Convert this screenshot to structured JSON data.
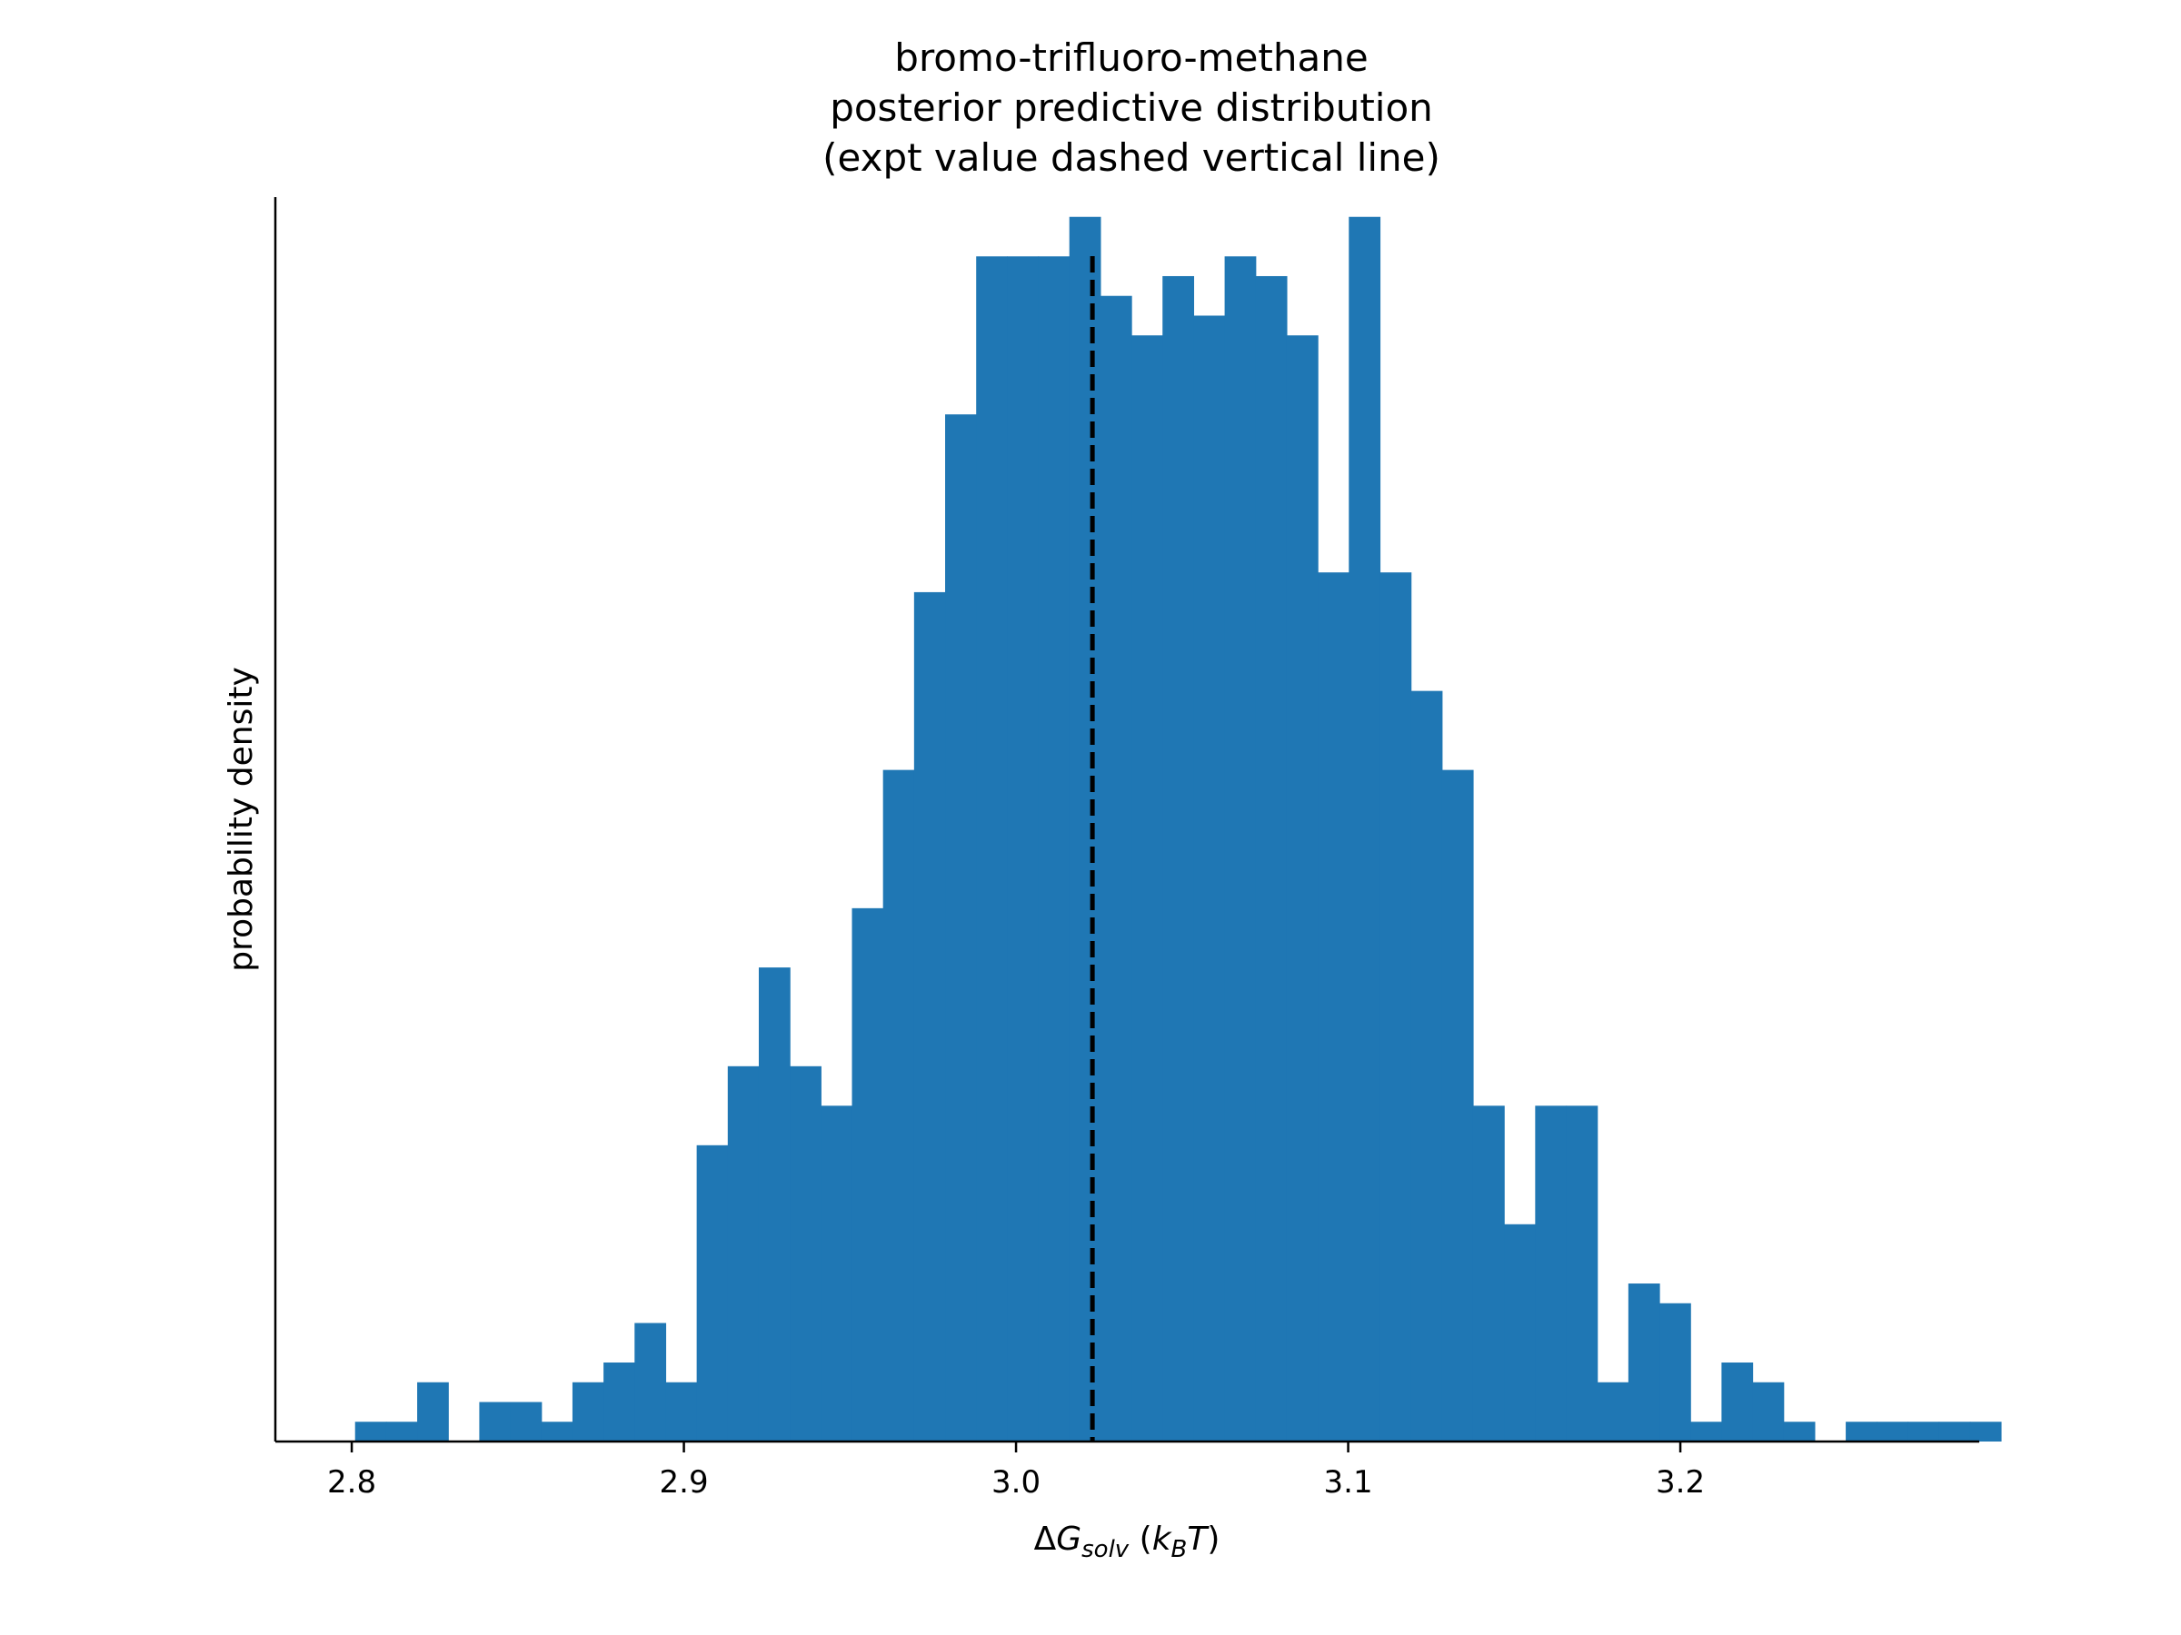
{
  "chart_data": {
    "type": "bar",
    "title_lines": [
      "bromo-trifluoro-methane",
      "posterior predictive distribution",
      "(expt value dashed vertical line)"
    ],
    "xlabel": "ΔG_solv (k_BT)",
    "xlabel_parts": {
      "delta": "Δ",
      "G": "G",
      "sub": "solv",
      "open": " (",
      "k": "k",
      "ksub": "B",
      "T": "T",
      "close": ")"
    },
    "ylabel": "probability density",
    "xlim": [
      2.777,
      3.29
    ],
    "ylim": [
      0,
      63
    ],
    "xticks": [
      2.8,
      2.9,
      3.0,
      3.1,
      3.2
    ],
    "xtick_labels": [
      "2.8",
      "2.9",
      "3.0",
      "3.1",
      "3.2"
    ],
    "bar_color": "#1f77b4",
    "expt_value": 3.023,
    "bins": {
      "start": 2.801,
      "width": 0.00935,
      "counts": [
        1,
        1,
        3,
        0,
        2,
        2,
        1,
        3,
        4,
        6,
        3,
        15,
        19,
        24,
        19,
        17,
        27,
        34,
        43,
        52,
        60,
        60,
        60,
        62,
        58,
        56,
        59,
        57,
        60,
        59,
        56,
        44,
        62,
        44,
        38,
        34,
        17,
        11,
        17,
        17,
        3,
        8,
        7,
        1,
        4,
        3,
        1,
        0,
        1,
        1,
        1,
        1,
        1
      ]
    },
    "grid": false,
    "legend": "none"
  }
}
